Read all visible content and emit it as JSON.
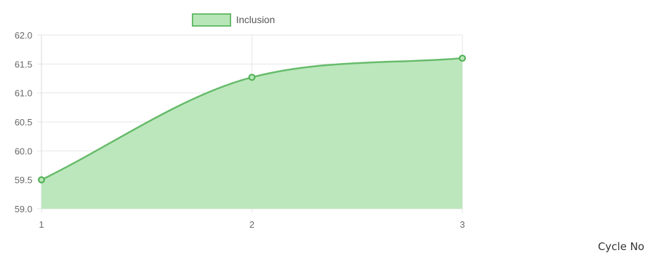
{
  "chart_data": {
    "type": "area",
    "title": "",
    "xlabel": "Cycle No",
    "ylabel": "",
    "x": [
      1,
      2,
      3
    ],
    "series": [
      {
        "name": "Inclusion",
        "values": [
          59.5,
          61.27,
          61.6
        ]
      }
    ],
    "ylim": [
      59.0,
      62.0
    ],
    "yticks": [
      "59.0",
      "59.5",
      "60.0",
      "60.5",
      "61.0",
      "61.5",
      "62.0"
    ],
    "xticks": [
      "1",
      "2",
      "3"
    ],
    "grid": true,
    "legend": "top",
    "colors": {
      "line": "#66bb6a",
      "fill": "#b8e6b8",
      "point": "#4caf50",
      "grid": "#e6e6e6"
    }
  }
}
